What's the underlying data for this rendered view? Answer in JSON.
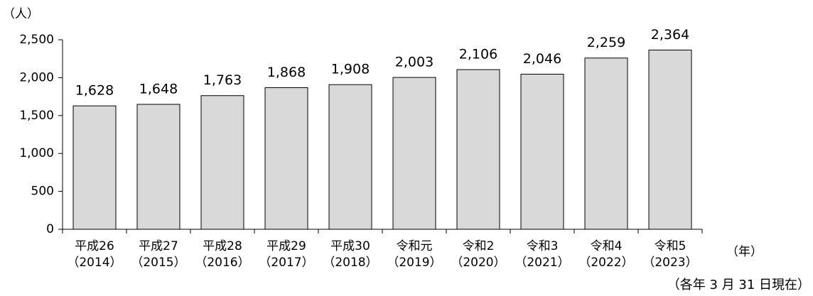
{
  "chart_data": {
    "type": "bar",
    "y_unit": "（人）",
    "x_unit": "（年）",
    "note": "（各年 3 月 31 日現在）",
    "categories": [
      [
        "平成26",
        "（2014）"
      ],
      [
        "平成27",
        "（2015）"
      ],
      [
        "平成28",
        "（2016）"
      ],
      [
        "平成29",
        "（2017）"
      ],
      [
        "平成30",
        "（2018）"
      ],
      [
        "令和元",
        "（2019）"
      ],
      [
        "令和2",
        "（2020）"
      ],
      [
        "令和3",
        "（2021）"
      ],
      [
        "令和4",
        "（2022）"
      ],
      [
        "令和5",
        "（2023）"
      ]
    ],
    "values": [
      1628,
      1648,
      1763,
      1868,
      1908,
      2003,
      2106,
      2046,
      2259,
      2364
    ],
    "value_labels": [
      "1,628",
      "1,648",
      "1,763",
      "1,868",
      "1,908",
      "2,003",
      "2,106",
      "2,046",
      "2,259",
      "2,364"
    ],
    "color": "#d9d9d9",
    "ylim": [
      0,
      2500
    ],
    "yticks": [
      0,
      500,
      {
        "value": 1000,
        "label": "1,000"
      },
      {
        "value": 1500,
        "label": "1,500"
      },
      {
        "value": 2000,
        "label": "2,000"
      },
      {
        "value": 2500,
        "label": "2,500"
      }
    ],
    "grid": false
  }
}
